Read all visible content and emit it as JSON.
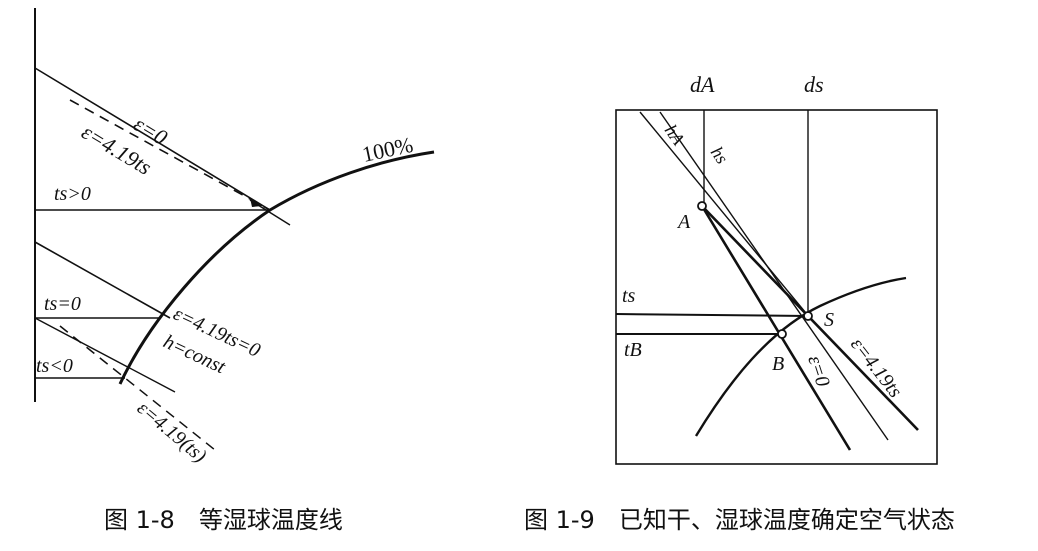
{
  "figure_left": {
    "number": "图 1-8",
    "title": "等湿球温度线",
    "labels": {
      "eps0": "ε=0",
      "eps419ts": "ε=4.19ts",
      "pct100": "100%",
      "ts_gt0": "ts>0",
      "ts_eq0": "ts=0",
      "ts_lt0": "ts<0",
      "eps419ts0": "ε=4.19ts=0",
      "hconst": "h=const",
      "eps419paren": "ε=4.19(ts)"
    }
  },
  "figure_right": {
    "number": "图 1-9",
    "title": "已知干、湿球温度确定空气状态",
    "labels": {
      "dA": "dA",
      "ds": "ds",
      "hA": "hA",
      "hs": "hs",
      "A": "A",
      "S": "S",
      "B": "B",
      "ts": "ts",
      "tB": "tB",
      "eps0": "ε=0",
      "eps419ts": "ε=4.19ts"
    }
  }
}
